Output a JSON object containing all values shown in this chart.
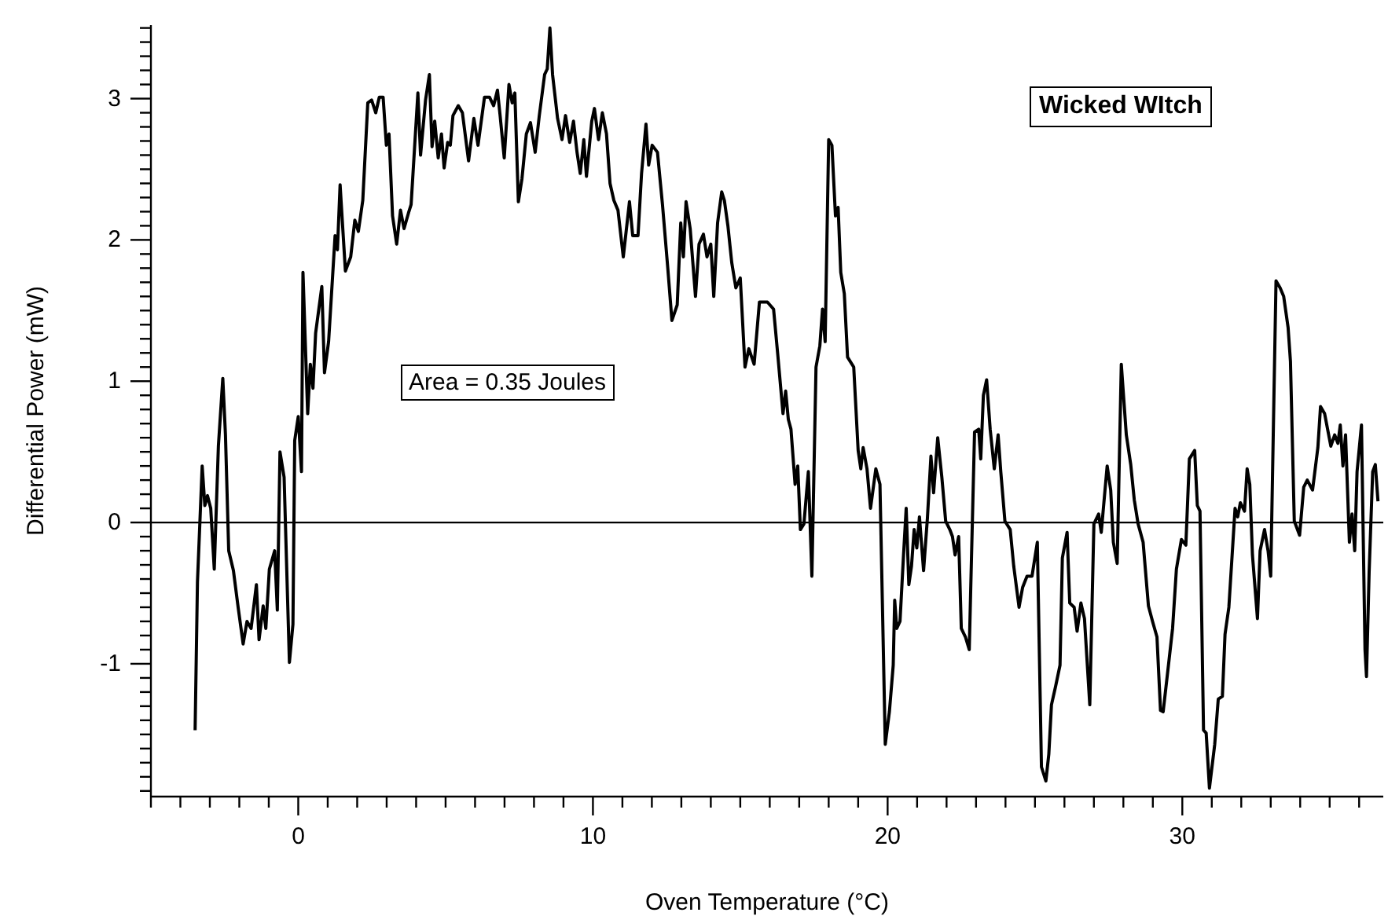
{
  "chart_data": {
    "type": "line",
    "title": "Wicked WItch",
    "xlabel": "Oven Temperature (°C)",
    "ylabel": "Differential Power (mW)",
    "annotations": [
      "Area = 0.35 Joules"
    ],
    "xlim": [
      -5,
      36.82
    ],
    "ylim": [
      -1.94,
      3.52
    ],
    "xticks": [
      {
        "value": -5,
        "label": null
      },
      {
        "value": -4,
        "label": null
      },
      {
        "value": -3,
        "label": null
      },
      {
        "value": -2,
        "label": null
      },
      {
        "value": -1,
        "label": null
      },
      0,
      {
        "value": 1,
        "label": null
      },
      {
        "value": 2,
        "label": null
      },
      {
        "value": 3,
        "label": null
      },
      {
        "value": 4,
        "label": null
      },
      {
        "value": 5,
        "label": null
      },
      {
        "value": 6,
        "label": null
      },
      {
        "value": 7,
        "label": null
      },
      {
        "value": 8,
        "label": null
      },
      {
        "value": 9,
        "label": null
      },
      10,
      {
        "value": 11,
        "label": null
      },
      {
        "value": 12,
        "label": null
      },
      {
        "value": 13,
        "label": null
      },
      {
        "value": 14,
        "label": null
      },
      {
        "value": 15,
        "label": null
      },
      {
        "value": 16,
        "label": null
      },
      {
        "value": 17,
        "label": null
      },
      {
        "value": 18,
        "label": null
      },
      {
        "value": 19,
        "label": null
      },
      20,
      {
        "value": 21,
        "label": null
      },
      {
        "value": 22,
        "label": null
      },
      {
        "value": 23,
        "label": null
      },
      {
        "value": 24,
        "label": null
      },
      {
        "value": 25,
        "label": null
      },
      {
        "value": 26,
        "label": null
      },
      {
        "value": 27,
        "label": null
      },
      {
        "value": 28,
        "label": null
      },
      {
        "value": 29,
        "label": null
      },
      30,
      {
        "value": 31,
        "label": null
      },
      {
        "value": 32,
        "label": null
      },
      {
        "value": 33,
        "label": null
      },
      {
        "value": 34,
        "label": null
      },
      {
        "value": 35,
        "label": null
      },
      {
        "value": 36,
        "label": null
      }
    ],
    "yticks": [
      {
        "value": -1.9,
        "label": null
      },
      {
        "value": -1.8,
        "label": null
      },
      {
        "value": -1.7,
        "label": null
      },
      {
        "value": -1.6,
        "label": null
      },
      {
        "value": -1.5,
        "label": null
      },
      {
        "value": -1.4,
        "label": null
      },
      {
        "value": -1.3,
        "label": null
      },
      {
        "value": -1.2,
        "label": null
      },
      {
        "value": -1.1,
        "label": null
      },
      -1,
      {
        "value": -0.9,
        "label": null
      },
      {
        "value": -0.8,
        "label": null
      },
      {
        "value": -0.7,
        "label": null
      },
      {
        "value": -0.6,
        "label": null
      },
      {
        "value": -0.5,
        "label": null
      },
      {
        "value": -0.4,
        "label": null
      },
      {
        "value": -0.3,
        "label": null
      },
      {
        "value": -0.2,
        "label": null
      },
      {
        "value": -0.1,
        "label": null
      },
      0,
      {
        "value": 0.1,
        "label": null
      },
      {
        "value": 0.2,
        "label": null
      },
      {
        "value": 0.3,
        "label": null
      },
      {
        "value": 0.4,
        "label": null
      },
      {
        "value": 0.5,
        "label": null
      },
      {
        "value": 0.6,
        "label": null
      },
      {
        "value": 0.7,
        "label": null
      },
      {
        "value": 0.8,
        "label": null
      },
      {
        "value": 0.9,
        "label": null
      },
      1,
      {
        "value": 1.1,
        "label": null
      },
      {
        "value": 1.2,
        "label": null
      },
      {
        "value": 1.3,
        "label": null
      },
      {
        "value": 1.4,
        "label": null
      },
      {
        "value": 1.5,
        "label": null
      },
      {
        "value": 1.6,
        "label": null
      },
      {
        "value": 1.7,
        "label": null
      },
      {
        "value": 1.8,
        "label": null
      },
      {
        "value": 1.9,
        "label": null
      },
      2,
      {
        "value": 2.1,
        "label": null
      },
      {
        "value": 2.2,
        "label": null
      },
      {
        "value": 2.3,
        "label": null
      },
      {
        "value": 2.4,
        "label": null
      },
      {
        "value": 2.5,
        "label": null
      },
      {
        "value": 2.6,
        "label": null
      },
      {
        "value": 2.7,
        "label": null
      },
      {
        "value": 2.8,
        "label": null
      },
      {
        "value": 2.9,
        "label": null
      },
      3,
      {
        "value": 3.1,
        "label": null
      },
      {
        "value": 3.2,
        "label": null
      },
      {
        "value": 3.3,
        "label": null
      },
      {
        "value": 3.4,
        "label": null
      },
      {
        "value": 3.5,
        "label": null
      }
    ],
    "ref_lines": [
      {
        "axis": "y",
        "value": 0,
        "color": "#000000"
      }
    ],
    "series": [
      {
        "color": "#000000",
        "x": [
          -3.5,
          -3.42,
          -3.26,
          -3.17,
          -3.08,
          -2.97,
          -2.85,
          -2.71,
          -2.56,
          -2.47,
          -2.36,
          -2.2,
          -2.04,
          -1.87,
          -1.74,
          -1.6,
          -1.42,
          -1.33,
          -1.19,
          -1.1,
          -0.98,
          -0.8,
          -0.71,
          -0.62,
          -0.48,
          -0.3,
          -0.18,
          -0.12,
          0,
          0.11,
          0.16,
          0.32,
          0.41,
          0.5,
          0.59,
          0.8,
          0.89,
          1.03,
          1.25,
          1.33,
          1.42,
          1.6,
          1.78,
          1.92,
          2.04,
          2.19,
          2.36,
          2.49,
          2.63,
          2.75,
          2.88,
          2.99,
          3.08,
          3.2,
          3.34,
          3.47,
          3.59,
          3.74,
          3.83,
          4.06,
          4.15,
          4.32,
          4.45,
          4.54,
          4.63,
          4.75,
          4.86,
          4.95,
          5.07,
          5.16,
          5.25,
          5.43,
          5.57,
          5.78,
          5.96,
          6.1,
          6.32,
          6.49,
          6.63,
          6.76,
          6.85,
          6.99,
          7.15,
          7.26,
          7.35,
          7.47,
          7.59,
          7.74,
          7.88,
          8.04,
          8.18,
          8.36,
          8.45,
          8.54,
          8.63,
          8.8,
          8.95,
          9.07,
          9.21,
          9.34,
          9.46,
          9.57,
          9.69,
          9.78,
          9.96,
          10.05,
          10.19,
          10.32,
          10.46,
          10.58,
          10.71,
          10.85,
          11.03,
          11.24,
          11.35,
          11.53,
          11.65,
          11.8,
          11.89,
          12.01,
          12.19,
          12.36,
          12.54,
          12.68,
          12.86,
          12.98,
          13.07,
          13.16,
          13.3,
          13.48,
          13.6,
          13.75,
          13.87,
          14,
          14.1,
          14.23,
          14.37,
          14.46,
          14.58,
          14.71,
          14.85,
          15,
          15.16,
          15.29,
          15.47,
          15.65,
          15.92,
          16.13,
          16.28,
          16.45,
          16.54,
          16.63,
          16.72,
          16.86,
          16.95,
          17.04,
          17.16,
          17.31,
          17.43,
          17.57,
          17.7,
          17.79,
          17.88,
          18,
          18.11,
          18.23,
          18.32,
          18.41,
          18.53,
          18.64,
          18.85,
          19,
          19.09,
          19.17,
          19.3,
          19.42,
          19.6,
          19.74,
          19.92,
          20.06,
          20.19,
          20.24,
          20.31,
          20.42,
          20.54,
          20.63,
          20.72,
          20.81,
          20.9,
          20.99,
          21.08,
          21.22,
          21.35,
          21.47,
          21.56,
          21.7,
          21.84,
          21.97,
          22.11,
          22.2,
          22.29,
          22.41,
          22.5,
          22.64,
          22.77,
          22.95,
          23.09,
          23.16,
          23.25,
          23.36,
          23.48,
          23.62,
          23.75,
          23.84,
          23.98,
          24.16,
          24.28,
          24.46,
          24.58,
          24.73,
          24.9,
          25.08,
          25.22,
          25.37,
          25.47,
          25.56,
          25.7,
          25.85,
          25.93,
          26.09,
          26.18,
          26.33,
          26.43,
          26.56,
          26.68,
          26.86,
          27,
          27.16,
          27.25,
          27.36,
          27.45,
          27.57,
          27.66,
          27.79,
          27.93,
          28.1,
          28.25,
          28.37,
          28.5,
          28.67,
          28.85,
          28.99,
          29.14,
          29.26,
          29.35,
          29.53,
          29.67,
          29.8,
          29.97,
          30.12,
          30.24,
          30.42,
          30.51,
          30.6,
          30.72,
          30.81,
          30.92,
          31.1,
          31.22,
          31.36,
          31.45,
          31.58,
          31.7,
          31.79,
          31.88,
          31.97,
          32.11,
          32.2,
          32.29,
          32.38,
          32.55,
          32.64,
          32.79,
          32.91,
          33,
          33.18,
          33.32,
          33.44,
          33.59,
          33.67,
          33.8,
          33.98,
          34.12,
          34.24,
          34.42,
          34.6,
          34.69,
          34.83,
          35.04,
          35.17,
          35.28,
          35.36,
          35.45,
          35.54,
          35.67,
          35.76,
          35.85,
          35.93,
          36.08,
          36.2,
          36.25,
          36.34,
          36.46,
          36.55,
          36.64
        ],
        "values": [
          -1.47,
          -0.42,
          0.4,
          0.12,
          0.19,
          0.1,
          -0.33,
          0.54,
          1.02,
          0.62,
          -0.2,
          -0.34,
          -0.6,
          -0.86,
          -0.7,
          -0.75,
          -0.44,
          -0.83,
          -0.59,
          -0.75,
          -0.33,
          -0.2,
          -0.62,
          0.5,
          0.32,
          -0.99,
          -0.72,
          0.58,
          0.75,
          0.36,
          1.77,
          0.77,
          1.12,
          0.95,
          1.34,
          1.67,
          1.06,
          1.28,
          2.03,
          1.93,
          2.39,
          1.78,
          1.88,
          2.14,
          2.06,
          2.28,
          2.97,
          2.99,
          2.9,
          3.01,
          3.01,
          2.67,
          2.75,
          2.17,
          1.97,
          2.21,
          2.08,
          2.19,
          2.25,
          3.04,
          2.6,
          2.99,
          3.17,
          2.66,
          2.84,
          2.58,
          2.75,
          2.51,
          2.69,
          2.67,
          2.88,
          2.95,
          2.9,
          2.56,
          2.86,
          2.67,
          3.01,
          3.01,
          2.95,
          3.06,
          2.88,
          2.58,
          3.1,
          2.97,
          3.04,
          2.27,
          2.43,
          2.75,
          2.83,
          2.62,
          2.88,
          3.17,
          3.21,
          3.5,
          3.17,
          2.86,
          2.71,
          2.88,
          2.69,
          2.84,
          2.62,
          2.47,
          2.71,
          2.45,
          2.84,
          2.93,
          2.71,
          2.9,
          2.75,
          2.4,
          2.28,
          2.21,
          1.88,
          2.27,
          2.03,
          2.03,
          2.47,
          2.82,
          2.53,
          2.67,
          2.62,
          2.25,
          1.8,
          1.43,
          1.54,
          2.12,
          1.88,
          2.27,
          2.08,
          1.6,
          1.97,
          2.04,
          1.88,
          1.97,
          1.6,
          2.12,
          2.34,
          2.28,
          2.1,
          1.84,
          1.66,
          1.73,
          1.1,
          1.23,
          1.12,
          1.56,
          1.56,
          1.51,
          1.17,
          0.77,
          0.93,
          0.73,
          0.66,
          0.27,
          0.4,
          -0.05,
          -0.01,
          0.36,
          -0.38,
          1.1,
          1.25,
          1.51,
          1.28,
          2.71,
          2.67,
          2.17,
          2.23,
          1.77,
          1.62,
          1.17,
          1.1,
          0.51,
          0.38,
          0.53,
          0.38,
          0.1,
          0.38,
          0.27,
          -1.57,
          -1.34,
          -1.01,
          -0.55,
          -0.75,
          -0.7,
          -0.23,
          0.1,
          -0.44,
          -0.31,
          -0.05,
          -0.18,
          0.04,
          -0.34,
          0.03,
          0.47,
          0.21,
          0.6,
          0.32,
          0.01,
          -0.05,
          -0.1,
          -0.23,
          -0.1,
          -0.75,
          -0.81,
          -0.9,
          0.64,
          0.66,
          0.45,
          0.9,
          1.01,
          0.66,
          0.38,
          0.62,
          0.36,
          0.01,
          -0.05,
          -0.31,
          -0.6,
          -0.46,
          -0.38,
          -0.38,
          -0.14,
          -1.73,
          -1.83,
          -1.64,
          -1.29,
          -1.16,
          -1.01,
          -0.25,
          -0.07,
          -0.57,
          -0.6,
          -0.77,
          -0.57,
          -0.68,
          -1.29,
          -0.01,
          0.06,
          -0.07,
          0.19,
          0.4,
          0.23,
          -0.14,
          -0.29,
          1.12,
          0.62,
          0.41,
          0.16,
          -0.01,
          -0.14,
          -0.59,
          -0.7,
          -0.81,
          -1.33,
          -1.34,
          -1.01,
          -0.75,
          -0.33,
          -0.12,
          -0.16,
          0.45,
          0.51,
          0.12,
          0.08,
          -1.47,
          -1.49,
          -1.88,
          -1.57,
          -1.25,
          -1.23,
          -0.79,
          -0.6,
          -0.2,
          0.1,
          0.04,
          0.14,
          0.08,
          0.38,
          0.27,
          -0.23,
          -0.68,
          -0.2,
          -0.05,
          -0.2,
          -0.38,
          1.71,
          1.66,
          1.6,
          1.38,
          1.14,
          0.01,
          -0.09,
          0.25,
          0.3,
          0.23,
          0.53,
          0.82,
          0.77,
          0.54,
          0.62,
          0.56,
          0.69,
          0.4,
          0.62,
          -0.14,
          0.06,
          -0.2,
          0.36,
          0.69,
          -0.9,
          -1.09,
          -0.35,
          0.36,
          0.41,
          0.15
        ]
      }
    ]
  }
}
